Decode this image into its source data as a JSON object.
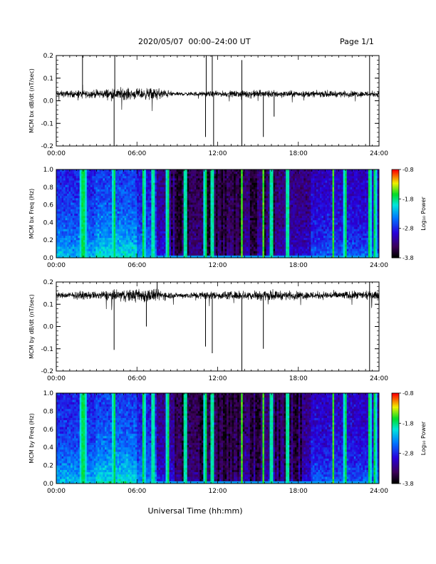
{
  "header": {
    "title": "2020/05/07  00:00–24:00 UT",
    "page": "Page 1/1"
  },
  "xaxis": {
    "ticks": [
      "00:00",
      "06:00",
      "12:00",
      "18:00",
      "24:00"
    ],
    "tick_hours": [
      0,
      6,
      12,
      18,
      24
    ],
    "range_hours": [
      0,
      24
    ],
    "label": "Universal Time (hh:mm)"
  },
  "colorbar": {
    "label": "Log₁₀ Power",
    "ticks": [
      "-0.8",
      "-1.8",
      "-2.8",
      "-3.8"
    ],
    "tick_values": [
      -0.8,
      -1.8,
      -2.8,
      -3.8
    ],
    "range": [
      -3.8,
      -0.8
    ],
    "colormap": "rainbow (black-purple-blue-cyan-green-yellow-red)"
  },
  "colors": {
    "trace": "#000000",
    "spectrogram_low": "#000000",
    "spectrogram_high": "#ff0000"
  },
  "chart_data": [
    {
      "type": "line",
      "ylabel": "MCM bx dB/dt (nT/sec)",
      "ylim": [
        -0.2,
        0.2
      ],
      "yticks": [
        "0.2",
        "0.1",
        "0.0",
        "-0.1",
        "-0.2"
      ],
      "ytick_values": [
        0.2,
        0.1,
        0.0,
        -0.1,
        -0.2
      ],
      "baseline": 0.03,
      "noise_envelope": [
        {
          "hour": 0,
          "amplitude": 0.015
        },
        {
          "hour": 3,
          "amplitude": 0.02
        },
        {
          "hour": 4.5,
          "amplitude": 0.03
        },
        {
          "hour": 6,
          "amplitude": 0.025
        },
        {
          "hour": 7.5,
          "amplitude": 0.03
        },
        {
          "hour": 9,
          "amplitude": 0.008
        },
        {
          "hour": 11,
          "amplitude": 0.012
        },
        {
          "hour": 13,
          "amplitude": 0.015
        },
        {
          "hour": 15,
          "amplitude": 0.02
        },
        {
          "hour": 18,
          "amplitude": 0.015
        },
        {
          "hour": 21,
          "amplitude": 0.015
        },
        {
          "hour": 24,
          "amplitude": 0.015
        }
      ],
      "spikes": [
        {
          "hour": 1.95,
          "value": 0.2
        },
        {
          "hour": 4.3,
          "value": -0.2
        },
        {
          "hour": 4.35,
          "value": 0.2
        },
        {
          "hour": 11.1,
          "value": -0.16
        },
        {
          "hour": 11.15,
          "value": 0.2
        },
        {
          "hour": 11.6,
          "value": 0.2
        },
        {
          "hour": 11.7,
          "value": -0.2
        },
        {
          "hour": 13.8,
          "value": -0.2
        },
        {
          "hour": 13.8,
          "value": 0.18
        },
        {
          "hour": 15.4,
          "value": -0.16
        },
        {
          "hour": 16.2,
          "value": -0.07
        },
        {
          "hour": 23.3,
          "value": -0.2
        },
        {
          "hour": 23.3,
          "value": 0.2
        }
      ]
    },
    {
      "type": "heatmap",
      "ylabel": "MCM bx Freq (Hz)",
      "ylim": [
        0.0,
        1.0
      ],
      "yticks": [
        "1.0",
        "0.8",
        "0.6",
        "0.4",
        "0.2",
        "0.0"
      ],
      "ytick_values": [
        1.0,
        0.8,
        0.6,
        0.4,
        0.2,
        0.0
      ],
      "zlim": [
        -3.8,
        -0.8
      ],
      "bright_bands_hours": [
        1.9,
        2.1,
        4.3,
        6.5,
        7.2,
        8.3,
        9.6,
        11.1,
        11.6,
        13.8,
        15.4,
        16.0,
        17.2,
        20.6,
        21.5,
        23.3,
        23.7
      ]
    },
    {
      "type": "line",
      "ylabel": "MCM by dB/dt (nT/sec)",
      "ylim": [
        -0.2,
        0.2
      ],
      "yticks": [
        "0.2",
        "0.1",
        "0.0",
        "-0.1",
        "-0.2"
      ],
      "ytick_values": [
        0.2,
        0.1,
        0.0,
        -0.1,
        -0.2
      ],
      "baseline": 0.14,
      "noise_envelope": [
        {
          "hour": 0,
          "amplitude": 0.015
        },
        {
          "hour": 3,
          "amplitude": 0.02
        },
        {
          "hour": 5,
          "amplitude": 0.03
        },
        {
          "hour": 7,
          "amplitude": 0.035
        },
        {
          "hour": 9,
          "amplitude": 0.012
        },
        {
          "hour": 11,
          "amplitude": 0.02
        },
        {
          "hour": 13,
          "amplitude": 0.02
        },
        {
          "hour": 15,
          "amplitude": 0.025
        },
        {
          "hour": 18,
          "amplitude": 0.02
        },
        {
          "hour": 21,
          "amplitude": 0.02
        },
        {
          "hour": 24,
          "amplitude": 0.02
        }
      ],
      "spikes": [
        {
          "hour": 4.3,
          "value": -0.105
        },
        {
          "hour": 6.7,
          "value": 0.0
        },
        {
          "hour": 7.5,
          "value": 0.2
        },
        {
          "hour": 11.1,
          "value": -0.09
        },
        {
          "hour": 11.6,
          "value": -0.12
        },
        {
          "hour": 13.8,
          "value": -0.2
        },
        {
          "hour": 15.4,
          "value": -0.1
        },
        {
          "hour": 23.3,
          "value": -0.2
        },
        {
          "hour": 23.3,
          "value": 0.2
        }
      ]
    },
    {
      "type": "heatmap",
      "ylabel": "MCM by Freq (Hz)",
      "ylim": [
        0.0,
        1.0
      ],
      "yticks": [
        "1.0",
        "0.8",
        "0.6",
        "0.4",
        "0.2",
        "0.0"
      ],
      "ytick_values": [
        1.0,
        0.8,
        0.6,
        0.4,
        0.2,
        0.0
      ],
      "zlim": [
        -3.8,
        -0.8
      ],
      "bright_bands_hours": [
        1.9,
        2.1,
        4.3,
        6.5,
        7.2,
        8.3,
        9.6,
        11.1,
        11.6,
        13.8,
        15.4,
        16.0,
        17.2,
        20.6,
        21.5,
        23.3,
        23.7
      ]
    }
  ]
}
